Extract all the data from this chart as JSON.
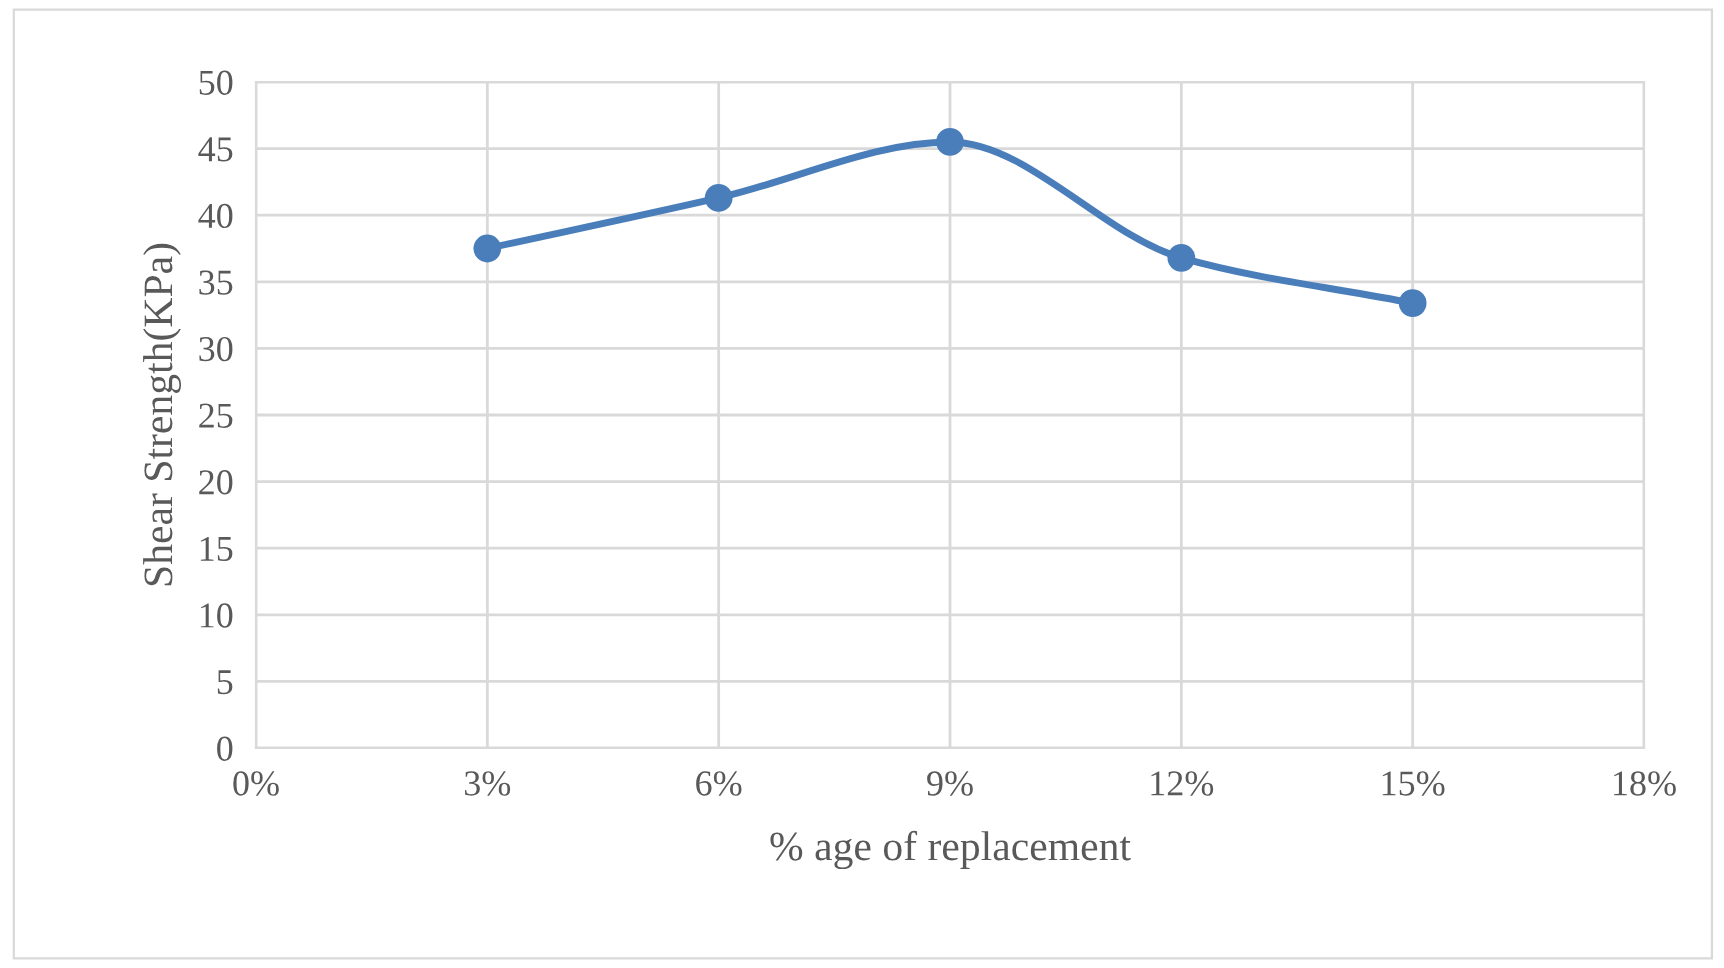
{
  "chart_data": {
    "type": "line",
    "xlabel": "% age of replacement",
    "ylabel": "Shear Strength(KPa)",
    "x": [
      3,
      6,
      9,
      12,
      15
    ],
    "series": [
      {
        "color": "#4a7ebb",
        "values": [
          37.5,
          41.3,
          45.5,
          36.8,
          33.4
        ]
      }
    ],
    "xlim": [
      0,
      18
    ],
    "xticks": [
      {
        "value": 0,
        "label": "0%"
      },
      {
        "value": 3,
        "label": "3%"
      },
      {
        "value": 6,
        "label": "6%"
      },
      {
        "value": 9,
        "label": "9%"
      },
      {
        "value": 12,
        "label": "12%"
      },
      {
        "value": 15,
        "label": "15%"
      },
      {
        "value": 18,
        "label": "18%"
      }
    ],
    "ylim": [
      0,
      50
    ],
    "yticks": [
      0,
      5,
      10,
      15,
      20,
      25,
      30,
      35,
      40,
      45,
      50
    ],
    "grid": true,
    "marker": "circle",
    "line_style": "solid",
    "legend": false
  }
}
